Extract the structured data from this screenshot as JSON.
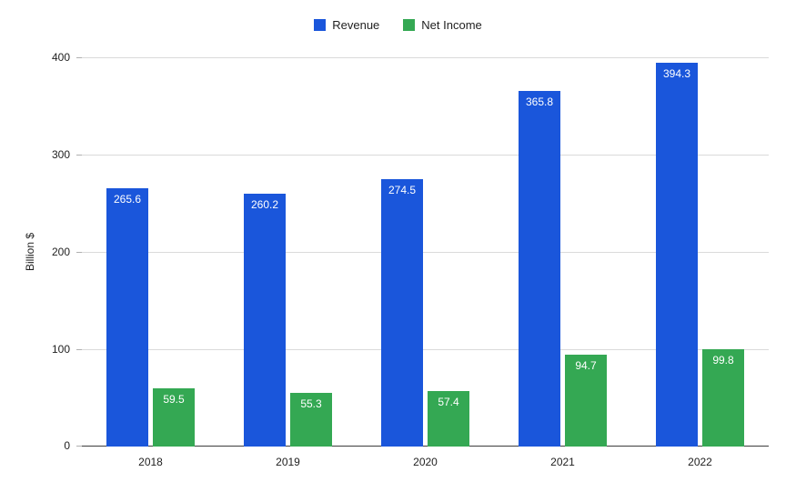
{
  "chart_data": {
    "type": "bar",
    "title": "",
    "categories": [
      "2018",
      "2019",
      "2020",
      "2021",
      "2022"
    ],
    "series": [
      {
        "name": "Revenue",
        "color": "#1a56db",
        "values": [
          265.6,
          260.2,
          274.5,
          365.8,
          394.3
        ]
      },
      {
        "name": "Net Income",
        "color": "#34a853",
        "values": [
          59.5,
          55.3,
          57.4,
          94.7,
          99.8
        ]
      }
    ],
    "xlabel": "",
    "ylabel": "Billion $",
    "ylim": [
      0,
      400
    ],
    "yticks": [
      0,
      100,
      200,
      300,
      400
    ],
    "grid": true,
    "legend_position": "top",
    "value_labels": "inside-top-white"
  }
}
